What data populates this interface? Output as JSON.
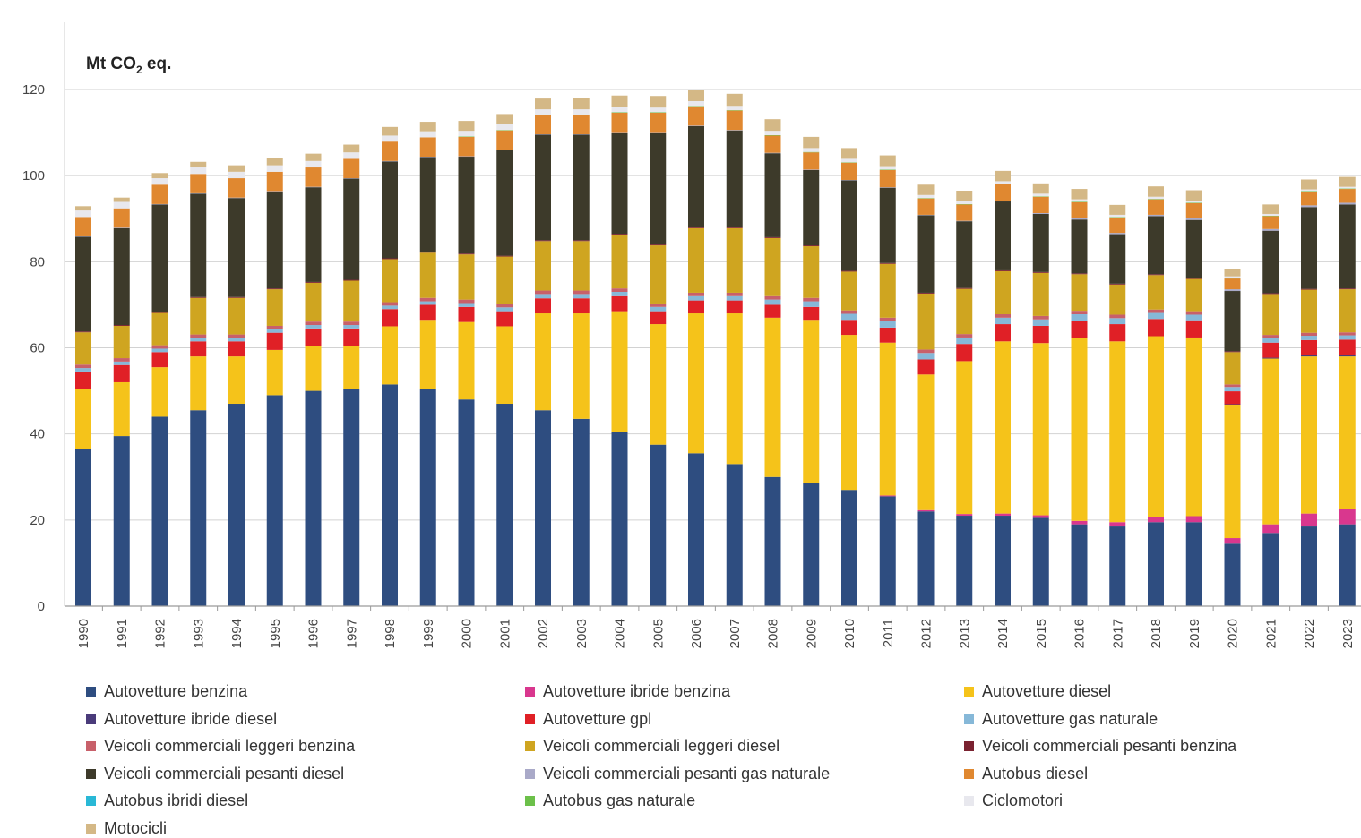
{
  "chart_data": {
    "type": "bar",
    "stacked": true,
    "unit_label": "Mt CO",
    "unit_sub": "2",
    "unit_suffix": " eq.",
    "ylim": [
      0,
      130
    ],
    "yticks": [
      0,
      20,
      40,
      60,
      80,
      100,
      120
    ],
    "grid": true,
    "legend_position": "bottom",
    "categories": [
      "1990",
      "1991",
      "1992",
      "1993",
      "1994",
      "1995",
      "1996",
      "1997",
      "1998",
      "1999",
      "2000",
      "2001",
      "2002",
      "2003",
      "2004",
      "2005",
      "2006",
      "2007",
      "2008",
      "2009",
      "2010",
      "2011",
      "2012",
      "2013",
      "2014",
      "2015",
      "2016",
      "2017",
      "2018",
      "2019",
      "2020",
      "2021",
      "2022",
      "2023"
    ],
    "series": [
      {
        "name": "Autovetture benzina",
        "color": "#2e4d80",
        "values": [
          36.5,
          39.5,
          44,
          45.5,
          47,
          49,
          50,
          50.5,
          51.5,
          50.5,
          48,
          47,
          45.5,
          43.5,
          40.5,
          37.5,
          35.5,
          33,
          30,
          28.5,
          27,
          25.5,
          22,
          21,
          21,
          20.5,
          19,
          18.5,
          19.5,
          19.5,
          14.5,
          17,
          18.5,
          19
        ]
      },
      {
        "name": "Autovetture ibride benzina",
        "color": "#d9378e",
        "values": [
          0,
          0,
          0,
          0,
          0,
          0,
          0,
          0,
          0,
          0,
          0,
          0,
          0,
          0,
          0,
          0,
          0,
          0,
          0,
          0,
          0,
          0.2,
          0.3,
          0.4,
          0.5,
          0.6,
          0.8,
          1,
          1.2,
          1.4,
          1.3,
          2,
          3,
          3.5
        ]
      },
      {
        "name": "Autovetture diesel",
        "color": "#f5c31a",
        "values": [
          14,
          12.5,
          11.5,
          12.5,
          11,
          10.5,
          10.5,
          10,
          13.5,
          16,
          18,
          18,
          22.5,
          24.5,
          28,
          28,
          32.5,
          35,
          37,
          38,
          36,
          35.5,
          31.5,
          35.5,
          40,
          40,
          42.5,
          42,
          42,
          41.5,
          31,
          38.5,
          36.5,
          35.5
        ]
      },
      {
        "name": "Autovetture ibride diesel",
        "color": "#4a3b7a",
        "values": [
          0,
          0,
          0,
          0,
          0,
          0,
          0,
          0,
          0,
          0,
          0,
          0,
          0,
          0,
          0,
          0,
          0,
          0,
          0,
          0,
          0,
          0,
          0,
          0,
          0,
          0,
          0,
          0,
          0,
          0,
          0.1,
          0.2,
          0.3,
          0.4
        ]
      },
      {
        "name": "Autovetture gpl",
        "color": "#e02026",
        "values": [
          4,
          4,
          3.5,
          3.5,
          3.5,
          4,
          4,
          4,
          4,
          3.5,
          3.5,
          3.5,
          3.5,
          3.5,
          3.5,
          3,
          3,
          3,
          3,
          3,
          3.5,
          3.5,
          3.5,
          4,
          4,
          4,
          4,
          4,
          4,
          4,
          3,
          3.5,
          3.5,
          3.5
        ]
      },
      {
        "name": "Autovetture gas naturale",
        "color": "#86b8d8",
        "values": [
          0.8,
          0.8,
          0.8,
          0.8,
          0.8,
          0.8,
          0.8,
          0.8,
          0.8,
          0.8,
          0.9,
          0.9,
          1,
          1,
          1,
          1,
          1,
          1,
          1.2,
          1.3,
          1.4,
          1.5,
          1.5,
          1.5,
          1.5,
          1.5,
          1.5,
          1.4,
          1.4,
          1.3,
          1,
          1.1,
          1,
          1
        ]
      },
      {
        "name": "Veicoli commerciali leggeri benzina",
        "color": "#c8606a",
        "values": [
          0.8,
          0.8,
          0.8,
          0.8,
          0.8,
          0.8,
          0.8,
          0.8,
          0.8,
          0.8,
          0.8,
          0.8,
          0.8,
          0.8,
          0.8,
          0.8,
          0.8,
          0.8,
          0.8,
          0.8,
          0.8,
          0.8,
          0.8,
          0.8,
          0.8,
          0.8,
          0.8,
          0.8,
          0.8,
          0.8,
          0.6,
          0.7,
          0.7,
          0.7
        ]
      },
      {
        "name": "Veicoli commerciali leggeri diesel",
        "color": "#cfa520",
        "values": [
          7.5,
          7.5,
          7.5,
          8.5,
          8.5,
          8.5,
          9,
          9.5,
          10,
          10.5,
          10.5,
          11,
          11.5,
          11.5,
          12.5,
          13.5,
          15,
          15,
          13.5,
          12,
          9,
          12.5,
          13,
          10.5,
          10,
          10,
          8.5,
          7,
          8,
          7.5,
          7.5,
          9.5,
          10,
          10
        ]
      },
      {
        "name": "Veicoli commerciali pesanti benzina",
        "color": "#7a2230",
        "values": [
          0.2,
          0.2,
          0.2,
          0.2,
          0.2,
          0.2,
          0.2,
          0.2,
          0.2,
          0.2,
          0.2,
          0.2,
          0.2,
          0.2,
          0.2,
          0.2,
          0.2,
          0.2,
          0.2,
          0.2,
          0.2,
          0.2,
          0.2,
          0.2,
          0.2,
          0.2,
          0.2,
          0.2,
          0.2,
          0.2,
          0.2,
          0.2,
          0.2,
          0.2
        ]
      },
      {
        "name": "Veicoli commerciali pesanti diesel",
        "color": "#3d3a2a",
        "values": [
          22,
          22.5,
          25,
          24,
          23,
          22.5,
          22,
          23.5,
          22.5,
          22,
          22.5,
          24.5,
          24.5,
          24.5,
          23.5,
          26,
          23.5,
          22.5,
          19.5,
          17.5,
          21,
          17.5,
          18,
          15.5,
          16,
          13.5,
          12.5,
          11.5,
          13.5,
          13.5,
          14,
          14.5,
          19,
          19.5
        ]
      },
      {
        "name": "Veicoli commerciali pesanti gas naturale",
        "color": "#a9a9c8",
        "values": [
          0.1,
          0.1,
          0.1,
          0.1,
          0.1,
          0.1,
          0.1,
          0.1,
          0.1,
          0.1,
          0.1,
          0.1,
          0.1,
          0.1,
          0.1,
          0.1,
          0.1,
          0.1,
          0.1,
          0.1,
          0.1,
          0.1,
          0.1,
          0.1,
          0.2,
          0.2,
          0.3,
          0.3,
          0.3,
          0.4,
          0.4,
          0.4,
          0.4,
          0.4
        ]
      },
      {
        "name": "Autobus diesel",
        "color": "#e08830",
        "values": [
          4.5,
          4.5,
          4.5,
          4.5,
          4.5,
          4.5,
          4.5,
          4.5,
          4.5,
          4.5,
          4.5,
          4.5,
          4.5,
          4.5,
          4.5,
          4.5,
          4.5,
          4.5,
          4,
          4,
          4,
          4,
          3.8,
          3.8,
          3.8,
          3.8,
          3.7,
          3.6,
          3.6,
          3.5,
          2.5,
          3,
          3.2,
          3.2
        ]
      },
      {
        "name": "Autobus ibridi diesel",
        "color": "#29b8d6",
        "values": [
          0,
          0,
          0,
          0,
          0,
          0,
          0,
          0,
          0,
          0,
          0,
          0,
          0,
          0,
          0,
          0,
          0,
          0,
          0,
          0,
          0,
          0,
          0,
          0,
          0,
          0,
          0,
          0,
          0,
          0,
          0,
          0,
          0,
          0
        ]
      },
      {
        "name": "Autobus gas naturale",
        "color": "#6cc04a",
        "values": [
          0,
          0,
          0,
          0,
          0,
          0,
          0,
          0,
          0,
          0,
          0.1,
          0.1,
          0.1,
          0.1,
          0.1,
          0.1,
          0.1,
          0.1,
          0.1,
          0.1,
          0.1,
          0.1,
          0.1,
          0.1,
          0.1,
          0.1,
          0.1,
          0.1,
          0.1,
          0.1,
          0.1,
          0.1,
          0.1,
          0.1
        ]
      },
      {
        "name": "Ciclomotori",
        "color": "#e8e8ee",
        "values": [
          1.5,
          1.5,
          1.5,
          1.5,
          1.5,
          1.5,
          1.5,
          1.5,
          1.4,
          1.4,
          1.3,
          1.3,
          1.2,
          1.2,
          1.2,
          1.1,
          1.1,
          1,
          1,
          0.9,
          0.8,
          0.8,
          0.7,
          0.7,
          0.6,
          0.6,
          0.6,
          0.5,
          0.5,
          0.5,
          0.4,
          0.4,
          0.4,
          0.4
        ]
      },
      {
        "name": "Motocicli",
        "color": "#d4b886",
        "values": [
          1,
          1,
          1.2,
          1.3,
          1.5,
          1.6,
          1.7,
          1.8,
          2,
          2.2,
          2.3,
          2.4,
          2.5,
          2.6,
          2.7,
          2.7,
          2.7,
          2.8,
          2.7,
          2.6,
          2.5,
          2.5,
          2.4,
          2.4,
          2.4,
          2.4,
          2.4,
          2.3,
          2.4,
          2.4,
          1.8,
          2.2,
          2.3,
          2.3
        ]
      }
    ]
  }
}
